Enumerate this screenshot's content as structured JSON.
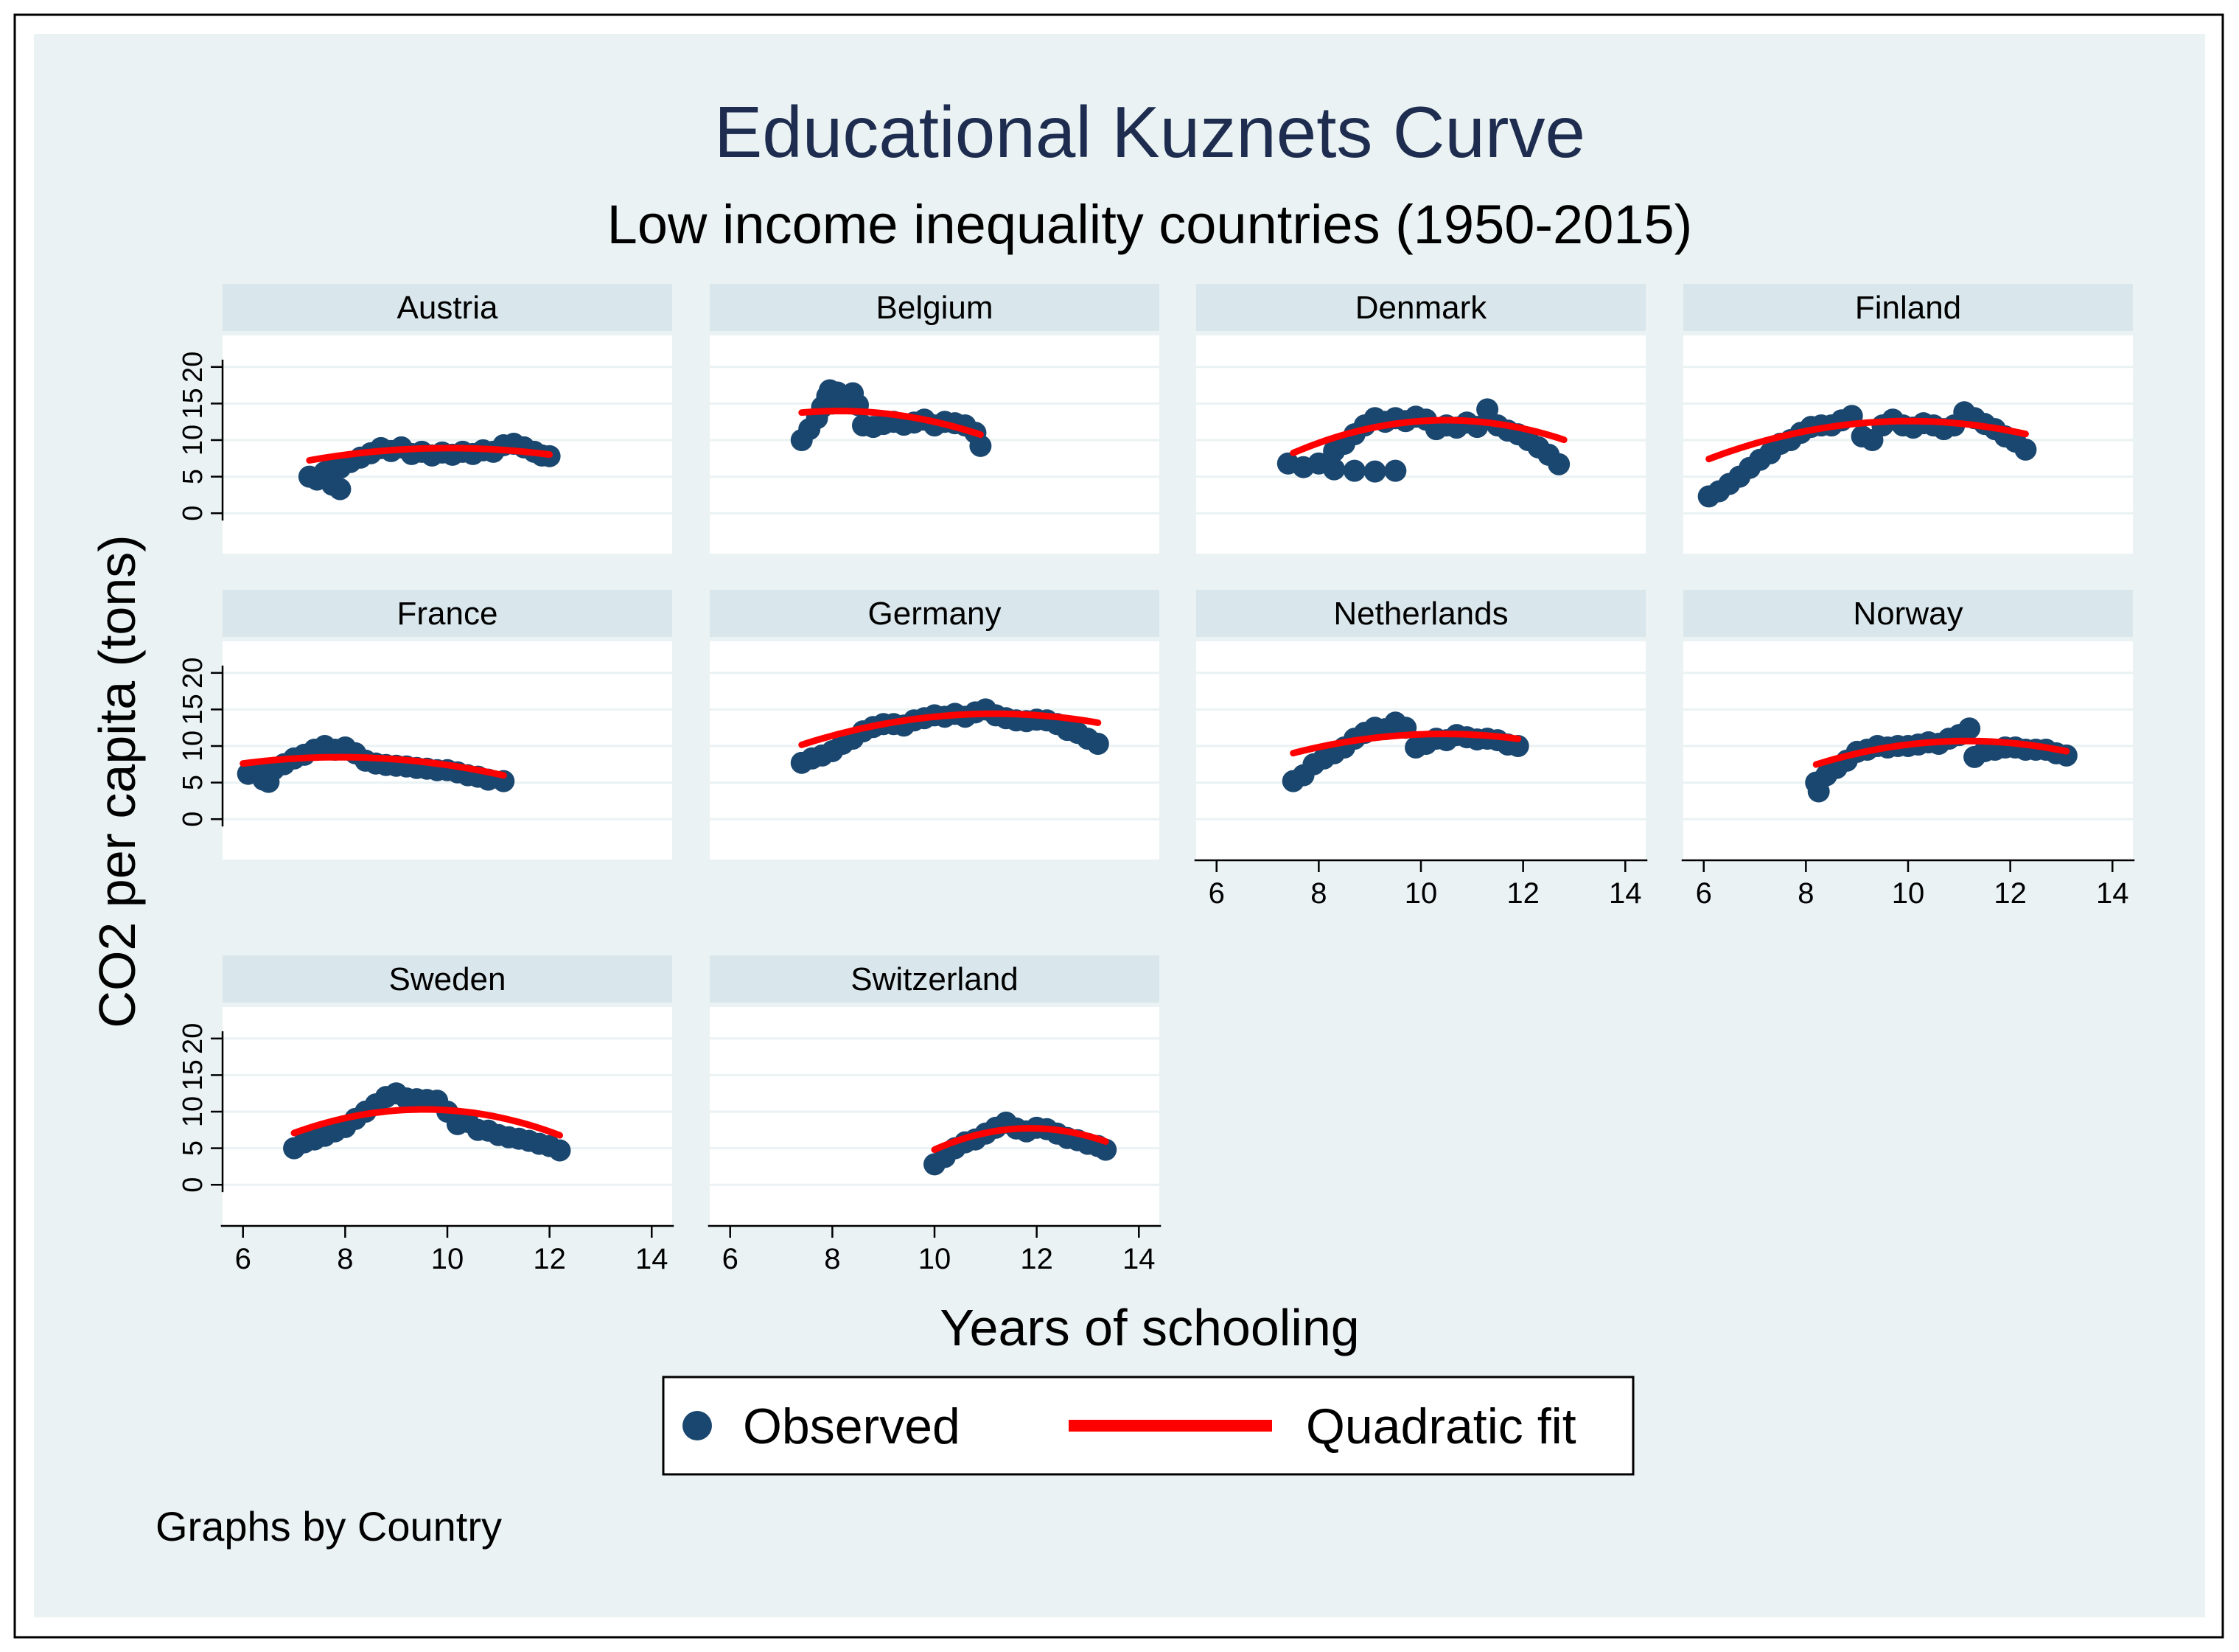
{
  "colors": {
    "background": "#EAF2F3",
    "panel_bg": "#FFFFFF",
    "strip_bg": "#D9E6EB",
    "gridline": "#EAF2F3",
    "axis": "#000000",
    "observed": "#1A476F",
    "fit": "#FF0000",
    "title": "#1E2D4F",
    "text": "#000000"
  },
  "chart_data": {
    "type": "scatter",
    "title": "Educational Kuznets Curve",
    "subtitle": "Low income inequality countries (1950-2015)",
    "xlabel": "Years of schooling",
    "ylabel": "CO2 per capita (tons)",
    "xlim": [
      5.6,
      14.4
    ],
    "ylim": [
      -2.5,
      22.5
    ],
    "xticks": [
      "6",
      "8",
      "10",
      "12",
      "14"
    ],
    "yticks": [
      "0",
      "5",
      "10",
      "15",
      "20"
    ],
    "note": "Graphs by Country",
    "legend": {
      "observed_label": "Observed",
      "fit_label": "Quadratic fit",
      "position": "bottom"
    },
    "panels": [
      {
        "name": "Austria",
        "observed": [
          [
            7.3,
            5.0
          ],
          [
            7.45,
            4.6
          ],
          [
            7.6,
            5.6
          ],
          [
            7.75,
            3.9
          ],
          [
            7.9,
            3.3
          ],
          [
            7.7,
            6.0
          ],
          [
            7.9,
            6.2
          ],
          [
            8.1,
            7.0
          ],
          [
            8.3,
            7.6
          ],
          [
            8.5,
            8.2
          ],
          [
            8.7,
            8.9
          ],
          [
            8.9,
            8.5
          ],
          [
            9.1,
            9.0
          ],
          [
            9.3,
            8.1
          ],
          [
            9.5,
            8.4
          ],
          [
            9.7,
            7.9
          ],
          [
            9.9,
            8.3
          ],
          [
            10.1,
            8.0
          ],
          [
            10.3,
            8.4
          ],
          [
            10.5,
            8.1
          ],
          [
            10.7,
            8.6
          ],
          [
            10.9,
            8.4
          ],
          [
            11.1,
            9.3
          ],
          [
            11.3,
            9.5
          ],
          [
            11.5,
            9.0
          ],
          [
            11.7,
            8.4
          ],
          [
            11.85,
            7.9
          ],
          [
            12.0,
            7.8
          ]
        ],
        "fit": [
          7.3,
          12.0,
          -0.225,
          4.51,
          -13.7
        ]
      },
      {
        "name": "Belgium",
        "observed": [
          [
            7.4,
            10.0
          ],
          [
            7.55,
            11.5
          ],
          [
            7.7,
            13.0
          ],
          [
            7.8,
            14.5
          ],
          [
            7.9,
            16.0
          ],
          [
            8.0,
            15.0
          ],
          [
            7.95,
            16.8
          ],
          [
            8.1,
            16.5
          ],
          [
            8.2,
            15.5
          ],
          [
            8.3,
            15.8
          ],
          [
            8.4,
            16.4
          ],
          [
            8.5,
            14.8
          ],
          [
            8.6,
            12.0
          ],
          [
            8.8,
            11.8
          ],
          [
            9.0,
            12.2
          ],
          [
            9.2,
            12.5
          ],
          [
            9.4,
            12.1
          ],
          [
            9.6,
            12.4
          ],
          [
            9.8,
            12.8
          ],
          [
            10.0,
            12.0
          ],
          [
            10.2,
            12.5
          ],
          [
            10.4,
            12.3
          ],
          [
            10.6,
            12.0
          ],
          [
            10.8,
            11.0
          ],
          [
            10.9,
            9.2
          ]
        ],
        "fit": [
          7.4,
          10.9,
          -0.417,
          6.77,
          -13.5
        ]
      },
      {
        "name": "Denmark",
        "observed": [
          [
            7.4,
            6.8
          ],
          [
            7.7,
            6.3
          ],
          [
            8.0,
            6.8
          ],
          [
            8.3,
            6.0
          ],
          [
            8.7,
            5.8
          ],
          [
            9.1,
            5.7
          ],
          [
            9.5,
            5.8
          ],
          [
            8.3,
            8.5
          ],
          [
            8.5,
            9.5
          ],
          [
            8.7,
            10.8
          ],
          [
            8.9,
            12.0
          ],
          [
            9.1,
            13.0
          ],
          [
            9.3,
            12.5
          ],
          [
            9.5,
            13.0
          ],
          [
            9.7,
            12.6
          ],
          [
            9.9,
            13.2
          ],
          [
            10.1,
            12.8
          ],
          [
            10.3,
            11.5
          ],
          [
            10.5,
            12.0
          ],
          [
            10.7,
            11.7
          ],
          [
            10.9,
            12.4
          ],
          [
            11.1,
            11.8
          ],
          [
            11.3,
            14.2
          ],
          [
            11.5,
            12.0
          ],
          [
            11.7,
            11.3
          ],
          [
            11.9,
            10.8
          ],
          [
            12.1,
            10.0
          ],
          [
            12.3,
            9.0
          ],
          [
            12.5,
            8.0
          ],
          [
            12.7,
            6.7
          ]
        ],
        "fit": [
          7.5,
          12.8,
          -0.501,
          10.51,
          -42.4
        ]
      },
      {
        "name": "Finland",
        "observed": [
          [
            6.1,
            2.3
          ],
          [
            6.3,
            3.0
          ],
          [
            6.5,
            4.0
          ],
          [
            6.7,
            5.0
          ],
          [
            6.9,
            6.2
          ],
          [
            7.1,
            7.3
          ],
          [
            7.3,
            8.2
          ],
          [
            7.5,
            9.5
          ],
          [
            7.7,
            10.0
          ],
          [
            7.9,
            11.0
          ],
          [
            8.1,
            11.8
          ],
          [
            8.3,
            12.0
          ],
          [
            8.5,
            12.0
          ],
          [
            8.7,
            12.7
          ],
          [
            8.9,
            13.3
          ],
          [
            9.1,
            10.5
          ],
          [
            9.3,
            10.0
          ],
          [
            9.5,
            12.0
          ],
          [
            9.7,
            12.8
          ],
          [
            9.9,
            12.0
          ],
          [
            10.1,
            11.7
          ],
          [
            10.3,
            12.3
          ],
          [
            10.5,
            12.0
          ],
          [
            10.7,
            11.5
          ],
          [
            10.9,
            12.0
          ],
          [
            11.1,
            13.8
          ],
          [
            11.3,
            13.0
          ],
          [
            11.5,
            12.2
          ],
          [
            11.7,
            11.5
          ],
          [
            11.9,
            10.5
          ],
          [
            12.1,
            9.8
          ],
          [
            12.3,
            8.7
          ]
        ],
        "fit": [
          6.1,
          12.3,
          -0.338,
          6.77,
          -21.3
        ]
      },
      {
        "name": "France",
        "observed": [
          [
            6.1,
            6.2
          ],
          [
            6.3,
            6.4
          ],
          [
            6.4,
            5.4
          ],
          [
            6.5,
            5.1
          ],
          [
            6.6,
            6.8
          ],
          [
            6.8,
            7.5
          ],
          [
            7.0,
            8.3
          ],
          [
            7.2,
            8.8
          ],
          [
            7.4,
            9.5
          ],
          [
            7.6,
            10.0
          ],
          [
            7.8,
            9.5
          ],
          [
            8.0,
            9.8
          ],
          [
            8.2,
            9.0
          ],
          [
            8.4,
            8.0
          ],
          [
            8.6,
            7.6
          ],
          [
            8.8,
            7.4
          ],
          [
            9.0,
            7.3
          ],
          [
            9.2,
            7.2
          ],
          [
            9.4,
            7.0
          ],
          [
            9.6,
            6.9
          ],
          [
            9.8,
            6.7
          ],
          [
            10.0,
            6.7
          ],
          [
            10.2,
            6.4
          ],
          [
            10.4,
            6.0
          ],
          [
            10.6,
            5.8
          ],
          [
            10.8,
            5.4
          ],
          [
            11.1,
            5.2
          ]
        ],
        "fit": [
          6.0,
          11.1,
          -0.242,
          3.82,
          -6.6
        ]
      },
      {
        "name": "Germany",
        "observed": [
          [
            7.4,
            7.7
          ],
          [
            7.6,
            8.3
          ],
          [
            7.8,
            8.7
          ],
          [
            8.0,
            9.3
          ],
          [
            8.2,
            10.3
          ],
          [
            8.4,
            11.0
          ],
          [
            8.6,
            12.0
          ],
          [
            8.8,
            12.6
          ],
          [
            9.0,
            13.0
          ],
          [
            9.2,
            13.0
          ],
          [
            9.4,
            12.8
          ],
          [
            9.6,
            13.5
          ],
          [
            9.8,
            13.8
          ],
          [
            10.0,
            14.2
          ],
          [
            10.2,
            14.0
          ],
          [
            10.4,
            14.4
          ],
          [
            10.6,
            14.0
          ],
          [
            10.8,
            14.6
          ],
          [
            11.0,
            15.0
          ],
          [
            11.2,
            14.2
          ],
          [
            11.4,
            13.8
          ],
          [
            11.6,
            13.5
          ],
          [
            11.8,
            13.4
          ],
          [
            12.0,
            13.6
          ],
          [
            12.2,
            13.5
          ],
          [
            12.4,
            13.0
          ],
          [
            12.6,
            12.2
          ],
          [
            12.8,
            11.8
          ],
          [
            13.0,
            11.0
          ],
          [
            13.2,
            10.3
          ]
        ],
        "fit": [
          7.4,
          13.2,
          -0.298,
          6.66,
          -22.8
        ]
      },
      {
        "name": "Netherlands",
        "observed": [
          [
            7.5,
            5.2
          ],
          [
            7.7,
            6.0
          ],
          [
            7.9,
            7.5
          ],
          [
            8.1,
            8.3
          ],
          [
            8.3,
            9.0
          ],
          [
            8.5,
            9.8
          ],
          [
            8.7,
            11.0
          ],
          [
            8.9,
            11.8
          ],
          [
            9.1,
            12.5
          ],
          [
            9.3,
            12.3
          ],
          [
            9.5,
            13.2
          ],
          [
            9.7,
            12.5
          ],
          [
            9.9,
            9.8
          ],
          [
            10.1,
            10.3
          ],
          [
            10.3,
            11.0
          ],
          [
            10.5,
            10.8
          ],
          [
            10.7,
            11.5
          ],
          [
            10.9,
            11.2
          ],
          [
            11.1,
            10.9
          ],
          [
            11.3,
            11.0
          ],
          [
            11.5,
            10.8
          ],
          [
            11.7,
            10.2
          ],
          [
            11.9,
            10.0
          ]
        ],
        "fit": [
          7.5,
          11.9,
          -0.308,
          6.42,
          -21.8
        ]
      },
      {
        "name": "Norway",
        "observed": [
          [
            8.2,
            5.0
          ],
          [
            8.25,
            3.8
          ],
          [
            8.4,
            6.0
          ],
          [
            8.6,
            7.0
          ],
          [
            8.8,
            8.0
          ],
          [
            9.0,
            9.2
          ],
          [
            9.2,
            9.5
          ],
          [
            9.4,
            10.0
          ],
          [
            9.6,
            9.8
          ],
          [
            9.8,
            10.0
          ],
          [
            10.0,
            10.0
          ],
          [
            10.2,
            10.2
          ],
          [
            10.4,
            10.5
          ],
          [
            10.6,
            10.3
          ],
          [
            10.8,
            11.0
          ],
          [
            11.0,
            11.5
          ],
          [
            11.2,
            12.4
          ],
          [
            11.3,
            8.5
          ],
          [
            11.5,
            9.3
          ],
          [
            11.7,
            9.5
          ],
          [
            11.9,
            9.8
          ],
          [
            12.1,
            9.8
          ],
          [
            12.3,
            9.5
          ],
          [
            12.5,
            9.5
          ],
          [
            12.7,
            9.5
          ],
          [
            12.9,
            9.0
          ],
          [
            13.1,
            8.7
          ]
        ],
        "fit": [
          8.2,
          13.1,
          -0.37,
          8.25,
          -35.3
        ]
      },
      {
        "name": "Sweden",
        "observed": [
          [
            7.0,
            5.0
          ],
          [
            7.2,
            5.8
          ],
          [
            7.4,
            6.2
          ],
          [
            7.6,
            6.7
          ],
          [
            7.8,
            7.3
          ],
          [
            8.0,
            7.9
          ],
          [
            8.2,
            9.0
          ],
          [
            8.4,
            10.0
          ],
          [
            8.6,
            11.0
          ],
          [
            8.8,
            12.0
          ],
          [
            9.0,
            12.5
          ],
          [
            9.2,
            11.8
          ],
          [
            9.4,
            11.7
          ],
          [
            9.6,
            11.6
          ],
          [
            9.8,
            11.5
          ],
          [
            10.0,
            10.0
          ],
          [
            10.2,
            8.3
          ],
          [
            10.4,
            8.6
          ],
          [
            10.6,
            7.5
          ],
          [
            10.8,
            7.4
          ],
          [
            11.0,
            6.8
          ],
          [
            11.2,
            6.5
          ],
          [
            11.4,
            6.3
          ],
          [
            11.6,
            6.0
          ],
          [
            11.8,
            5.6
          ],
          [
            12.0,
            5.3
          ],
          [
            12.2,
            4.7
          ]
        ],
        "fit": [
          7.0,
          12.2,
          -0.5,
          9.54,
          -35.2
        ]
      },
      {
        "name": "Switzerland",
        "observed": [
          [
            10.0,
            2.8
          ],
          [
            10.2,
            3.8
          ],
          [
            10.4,
            5.0
          ],
          [
            10.6,
            5.8
          ],
          [
            10.8,
            6.2
          ],
          [
            11.0,
            7.0
          ],
          [
            11.2,
            7.8
          ],
          [
            11.4,
            8.5
          ],
          [
            11.6,
            7.7
          ],
          [
            11.8,
            7.3
          ],
          [
            12.0,
            7.8
          ],
          [
            12.2,
            7.6
          ],
          [
            12.4,
            7.0
          ],
          [
            12.6,
            6.4
          ],
          [
            12.8,
            6.1
          ],
          [
            13.0,
            5.6
          ],
          [
            13.2,
            5.3
          ],
          [
            13.35,
            4.8
          ]
        ],
        "fit": [
          10.0,
          13.35,
          -0.832,
          19.76,
          -109.6
        ]
      }
    ]
  }
}
